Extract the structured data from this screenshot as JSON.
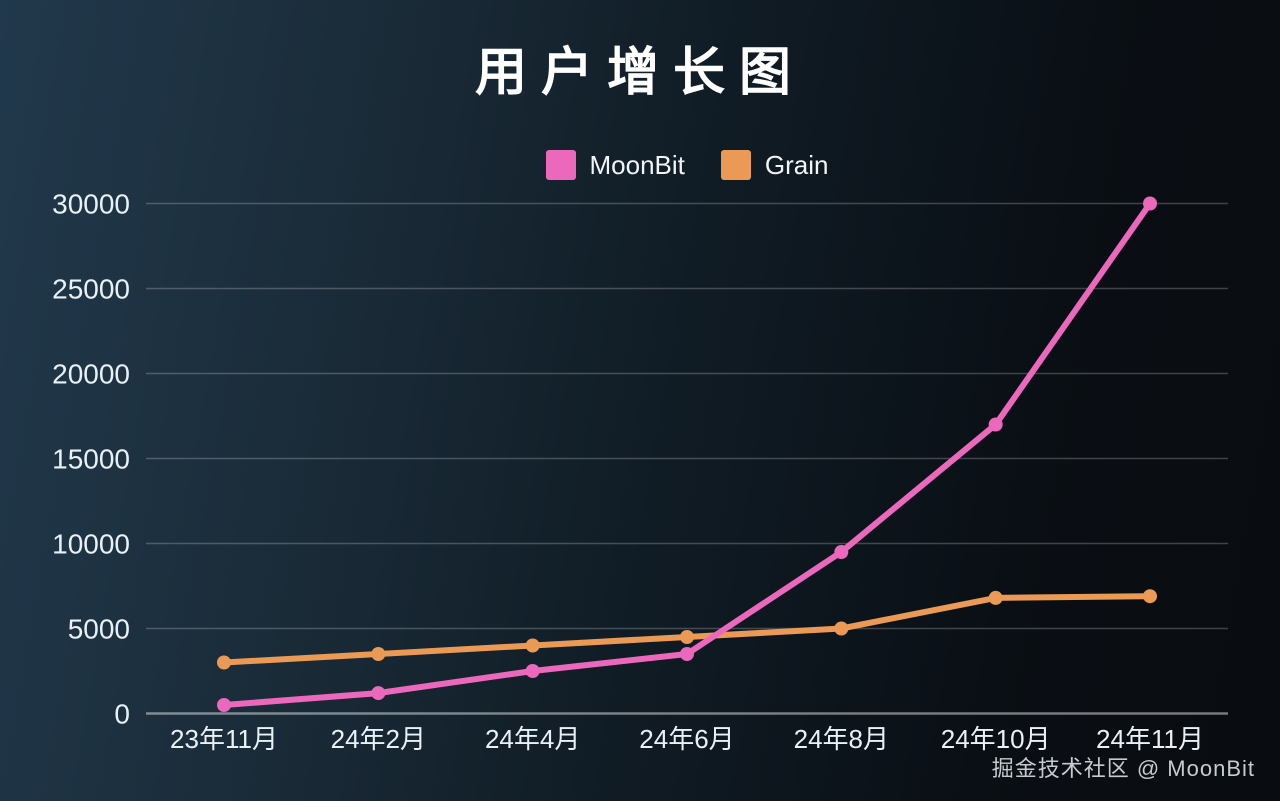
{
  "title": "用户增长图",
  "watermark": "掘金技术社区 @ MoonBit",
  "colors": {
    "moonbit": "#ec68bd",
    "grain": "#eb9a56",
    "tick_text": "#e9f0f6",
    "grid_line": "rgba(255,255,255,0.22)",
    "grid_zero_line": "rgba(255,255,255,0.45)",
    "background_left": "#21394c",
    "background_right": "#090c10"
  },
  "chart_data": {
    "type": "line",
    "title": "用户增长图",
    "xlabel": "",
    "ylabel": "",
    "grid": true,
    "legend_position": "top-center",
    "legend": [
      "MoonBit",
      "Grain"
    ],
    "categories": [
      "23年11月",
      "24年2月",
      "24年4月",
      "24年6月",
      "24年8月",
      "24年10月",
      "24年11月"
    ],
    "yticks": [
      0,
      5000,
      10000,
      15000,
      20000,
      25000,
      30000
    ],
    "ytick_step": 5000,
    "ylim": [
      0,
      30000
    ],
    "series": [
      {
        "name": "MoonBit",
        "color": "#ec68bd",
        "values": [
          500,
          1200,
          2500,
          3500,
          9500,
          17000,
          30000
        ]
      },
      {
        "name": "Grain",
        "color": "#eb9a56",
        "values": [
          3000,
          3500,
          4000,
          4500,
          5000,
          6800,
          6900
        ]
      }
    ]
  }
}
